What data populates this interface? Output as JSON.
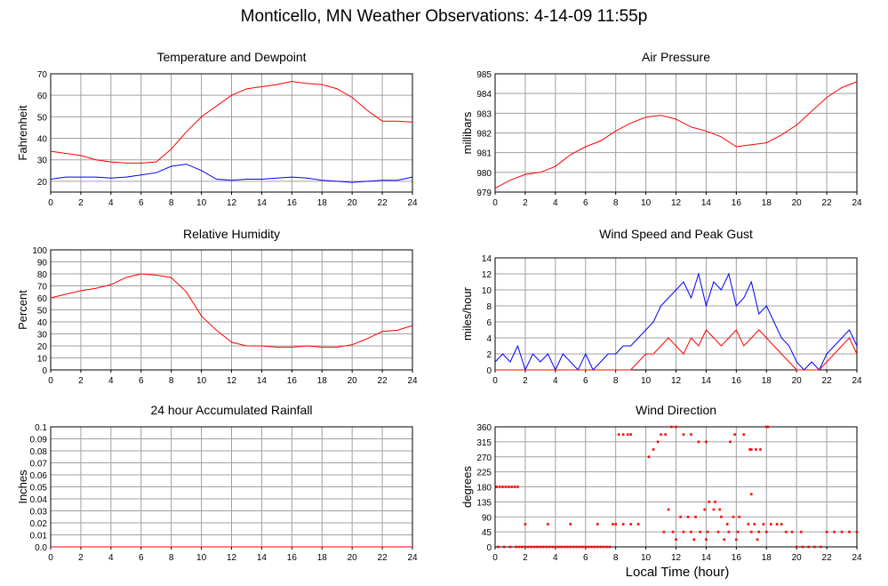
{
  "title": "Monticello, MN Weather Observations: 4-14-09 11:55p",
  "x_axis_title": "Local Time (hour)",
  "colors": {
    "red": "#ff0000",
    "blue": "#0000ff",
    "grid": "#a0a0a0",
    "frame": "#000000"
  },
  "chart_data": [
    {
      "id": "temp",
      "type": "line",
      "title": "Temperature and Dewpoint",
      "xlabel": "",
      "ylabel": "Fahrenheit",
      "xlim": [
        0,
        24
      ],
      "ylim": [
        15,
        70
      ],
      "xticks": [
        0,
        2,
        4,
        6,
        8,
        10,
        12,
        14,
        16,
        18,
        20,
        22,
        24
      ],
      "yticks": [
        20,
        30,
        40,
        50,
        60,
        70
      ],
      "grid": true,
      "series": [
        {
          "color": "#ff0000",
          "x": [
            0,
            1,
            2,
            3,
            4,
            5,
            6,
            7,
            8,
            9,
            10,
            11,
            12,
            13,
            14,
            15,
            16,
            17,
            18,
            19,
            20,
            21,
            22,
            23,
            24
          ],
          "y": [
            34,
            33,
            32,
            30,
            29,
            28.5,
            28.5,
            29,
            35,
            43,
            50,
            55,
            60,
            63,
            64,
            65,
            66.5,
            65.5,
            65,
            63,
            59,
            53,
            48,
            48,
            47.5
          ]
        },
        {
          "color": "#0000ff",
          "x": [
            0,
            1,
            2,
            3,
            4,
            5,
            6,
            7,
            8,
            9,
            10,
            11,
            12,
            13,
            14,
            15,
            16,
            17,
            18,
            19,
            20,
            21,
            22,
            23,
            24
          ],
          "y": [
            21,
            22,
            22,
            22,
            21.5,
            22,
            23,
            24,
            27,
            28,
            25,
            21,
            20.5,
            21,
            21,
            21.5,
            22,
            21.5,
            20.5,
            20,
            19.5,
            20,
            20.5,
            20.5,
            22
          ]
        }
      ]
    },
    {
      "id": "pressure",
      "type": "line",
      "title": "Air Pressure",
      "xlabel": "",
      "ylabel": "millibars",
      "xlim": [
        0,
        24
      ],
      "ylim": [
        979,
        985
      ],
      "xticks": [
        0,
        2,
        4,
        6,
        8,
        10,
        12,
        14,
        16,
        18,
        20,
        22,
        24
      ],
      "yticks": [
        979,
        980,
        981,
        982,
        983,
        984,
        985
      ],
      "grid": true,
      "series": [
        {
          "color": "#ff0000",
          "x": [
            0,
            1,
            2,
            3,
            4,
            5,
            6,
            7,
            8,
            9,
            10,
            11,
            12,
            13,
            14,
            15,
            16,
            17,
            18,
            19,
            20,
            21,
            22,
            23,
            24
          ],
          "y": [
            979.2,
            979.6,
            979.9,
            980,
            980.3,
            980.9,
            981.3,
            981.6,
            982.1,
            982.5,
            982.8,
            982.9,
            982.7,
            982.3,
            982.1,
            981.8,
            981.3,
            981.4,
            981.5,
            981.9,
            982.4,
            983.1,
            983.8,
            984.3,
            984.6
          ]
        }
      ]
    },
    {
      "id": "humidity",
      "type": "line",
      "title": "Relative Humidity",
      "xlabel": "",
      "ylabel": "Percent",
      "xlim": [
        0,
        24
      ],
      "ylim": [
        0,
        100
      ],
      "xticks": [
        0,
        2,
        4,
        6,
        8,
        10,
        12,
        14,
        16,
        18,
        20,
        22,
        24
      ],
      "yticks": [
        0,
        10,
        20,
        30,
        40,
        50,
        60,
        70,
        80,
        90,
        100
      ],
      "grid": true,
      "series": [
        {
          "color": "#ff0000",
          "x": [
            0,
            1,
            2,
            3,
            4,
            5,
            6,
            7,
            8,
            9,
            10,
            11,
            12,
            13,
            14,
            15,
            16,
            17,
            18,
            19,
            20,
            21,
            22,
            23,
            24
          ],
          "y": [
            60,
            63,
            66,
            68,
            71,
            77,
            80,
            79,
            77,
            65,
            45,
            33,
            23,
            20,
            20,
            19,
            19,
            20,
            19,
            19,
            21,
            26,
            32,
            33,
            37
          ]
        }
      ]
    },
    {
      "id": "wind",
      "type": "line",
      "title": "Wind Speed and Peak Gust",
      "xlabel": "",
      "ylabel": "miles/hour",
      "xlim": [
        0,
        24
      ],
      "ylim": [
        0,
        14
      ],
      "xticks": [
        0,
        2,
        4,
        6,
        8,
        10,
        12,
        14,
        16,
        18,
        20,
        22,
        24
      ],
      "yticks": [
        0,
        2,
        4,
        6,
        8,
        10,
        12,
        14
      ],
      "grid": true,
      "series": [
        {
          "color": "#0000ff",
          "x": [
            0,
            0.5,
            1,
            1.5,
            2,
            2.5,
            3,
            3.5,
            4,
            4.5,
            5,
            5.5,
            6,
            6.5,
            7,
            7.5,
            8,
            8.5,
            9,
            9.5,
            10,
            10.5,
            11,
            11.5,
            12,
            12.5,
            13,
            13.5,
            14,
            14.5,
            15,
            15.5,
            16,
            16.5,
            17,
            17.5,
            18,
            18.5,
            19,
            19.5,
            20,
            20.5,
            21,
            21.5,
            22,
            22.5,
            23,
            23.5,
            24
          ],
          "y": [
            1,
            2,
            1,
            3,
            0,
            2,
            1,
            2,
            0,
            2,
            1,
            0,
            2,
            0,
            1,
            2,
            2,
            3,
            3,
            4,
            5,
            6,
            8,
            9,
            10,
            11,
            9,
            12,
            8,
            11,
            10,
            12,
            8,
            9,
            11,
            7,
            8,
            6,
            4,
            3,
            1,
            0,
            1,
            0,
            2,
            3,
            4,
            5,
            3
          ]
        },
        {
          "color": "#ff0000",
          "x": [
            0,
            0.5,
            1,
            1.5,
            2,
            2.5,
            3,
            3.5,
            4,
            4.5,
            5,
            5.5,
            6,
            6.5,
            7,
            7.5,
            8,
            8.5,
            9,
            9.5,
            10,
            10.5,
            11,
            11.5,
            12,
            12.5,
            13,
            13.5,
            14,
            14.5,
            15,
            15.5,
            16,
            16.5,
            17,
            17.5,
            18,
            18.5,
            19,
            19.5,
            20,
            20.5,
            21,
            21.5,
            22,
            22.5,
            23,
            23.5,
            24
          ],
          "y": [
            0,
            0,
            0,
            0,
            0,
            0,
            0,
            0,
            0,
            0,
            0,
            0,
            0,
            0,
            0,
            0,
            0,
            0,
            0,
            1,
            2,
            2,
            3,
            4,
            3,
            2,
            4,
            3,
            5,
            4,
            3,
            4,
            5,
            3,
            4,
            5,
            4,
            3,
            2,
            1,
            0,
            0,
            0,
            0,
            1,
            2,
            3,
            4,
            2
          ]
        }
      ]
    },
    {
      "id": "rain",
      "type": "line",
      "title": "24 hour Accumulated Rainfall",
      "xlabel": "",
      "ylabel": "Inches",
      "xlim": [
        0,
        24
      ],
      "ylim": [
        0,
        0.1
      ],
      "xticks": [
        0,
        2,
        4,
        6,
        8,
        10,
        12,
        14,
        16,
        18,
        20,
        22,
        24
      ],
      "yticks": [
        "0.0",
        "0.01",
        "0.02",
        "0.03",
        "0.04",
        "0.05",
        "0.06",
        "0.07",
        "0.08",
        "0.09",
        "0.1"
      ],
      "grid": true,
      "series": [
        {
          "color": "#ff0000",
          "x": [
            0,
            24
          ],
          "y": [
            0,
            0
          ]
        }
      ]
    },
    {
      "id": "dir",
      "type": "scatter",
      "title": "Wind Direction",
      "xlabel": "Local Time (hour)",
      "ylabel": "degrees",
      "xlim": [
        0,
        24
      ],
      "ylim": [
        0,
        360
      ],
      "xticks": [
        0,
        2,
        4,
        6,
        8,
        10,
        12,
        14,
        16,
        18,
        20,
        22,
        24
      ],
      "yticks": [
        0,
        45,
        90,
        135,
        180,
        225,
        270,
        315,
        360
      ],
      "grid": true,
      "series": [
        {
          "color": "#ff0000",
          "x": [
            0.1,
            0.3,
            0.5,
            0.7,
            0.9,
            1.1,
            1.3,
            1.5,
            0.2,
            0.6,
            1.0,
            1.4,
            1.6,
            1.8,
            2.0,
            2.2,
            2.4,
            2.6,
            2.8,
            3.0,
            3.2,
            3.4,
            3.6,
            3.8,
            4.0,
            4.2,
            4.4,
            4.6,
            4.8,
            5.0,
            5.2,
            5.4,
            5.6,
            5.8,
            6.0,
            6.2,
            6.4,
            6.6,
            6.8,
            7.0,
            7.2,
            7.4,
            7.6,
            2.0,
            3.5,
            5.0,
            6.8,
            7.8,
            8.0,
            8.5,
            9.0,
            9.5,
            8.2,
            8.5,
            8.8,
            9.0,
            10.2,
            10.5,
            10.8,
            11.0,
            11.3,
            11.7,
            12.0,
            12.5,
            13.0,
            13.5,
            14.0,
            15.6,
            15.9,
            16.5,
            16.9,
            17.0,
            17.3,
            17.6,
            18.0,
            18.1,
            11.5,
            12.3,
            12.8,
            13.3,
            13.9,
            14.2,
            14.5,
            15.0,
            15.4,
            15.8,
            16.2,
            16.8,
            17.2,
            17.8,
            18.3,
            18.7,
            19.0,
            11.2,
            11.8,
            12.5,
            13.0,
            13.6,
            14.1,
            14.8,
            15.5,
            16.1,
            17.0,
            17.5,
            18.0,
            12.0,
            13.2,
            14.0,
            15.2,
            16.0,
            17.4,
            20.0,
            20.4,
            20.8,
            21.2,
            21.6,
            22.0,
            22.5,
            23.0,
            23.5,
            24.0,
            19.3,
            19.7,
            20.3,
            14.6,
            14.9,
            17.0
          ],
          "y": [
            180,
            180,
            180,
            180,
            180,
            180,
            180,
            180,
            0,
            0,
            0,
            0,
            0,
            0,
            0,
            0,
            0,
            0,
            0,
            0,
            0,
            0,
            0,
            0,
            0,
            0,
            0,
            0,
            0,
            0,
            0,
            0,
            0,
            0,
            0,
            0,
            0,
            0,
            0,
            0,
            0,
            0,
            0,
            68,
            68,
            68,
            68,
            68,
            68,
            68,
            68,
            68,
            337,
            337,
            337,
            337,
            270,
            292,
            315,
            337,
            337,
            360,
            360,
            337,
            337,
            315,
            315,
            315,
            337,
            337,
            292,
            292,
            292,
            292,
            360,
            360,
            112,
            90,
            90,
            90,
            112,
            135,
            112,
            90,
            68,
            90,
            90,
            68,
            68,
            68,
            68,
            68,
            68,
            45,
            45,
            45,
            45,
            45,
            45,
            45,
            45,
            45,
            45,
            45,
            45,
            22,
            22,
            22,
            22,
            22,
            22,
            0,
            0,
            0,
            0,
            0,
            45,
            45,
            45,
            45,
            45,
            45,
            45,
            45,
            135,
            112,
            158
          ]
        }
      ]
    }
  ]
}
